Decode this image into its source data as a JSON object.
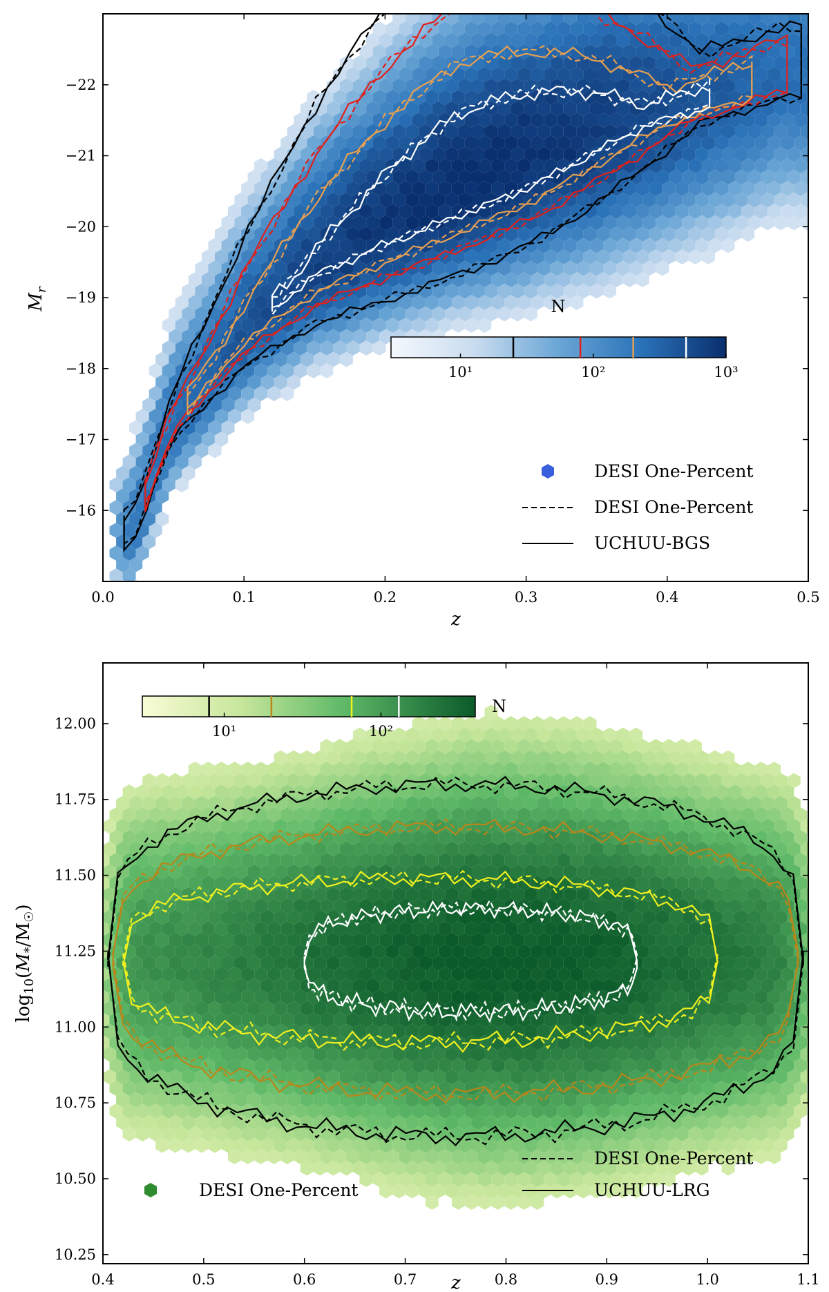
{
  "chart_data": [
    {
      "type": "hexbin-density-with-contours",
      "name": "BGS",
      "xlabel": "z",
      "ylabel": "M_r",
      "xlim": [
        0.0,
        0.5
      ],
      "ylim": [
        -15,
        -23
      ],
      "xticks": [
        0.0,
        0.1,
        0.2,
        0.3,
        0.4,
        0.5
      ],
      "xtick_labels": [
        "0.0",
        "0.1",
        "0.2",
        "0.3",
        "0.4",
        "0.5"
      ],
      "yticks": [
        -16,
        -17,
        -18,
        -19,
        -20,
        -21,
        -22
      ],
      "ytick_labels": [
        "−16",
        "−17",
        "−18",
        "−19",
        "−20",
        "−21",
        "−22"
      ],
      "colormap": "Blues",
      "colorbar": {
        "title": "N",
        "scale": "log",
        "range": [
          3,
          1000
        ],
        "tick_values": [
          10,
          100,
          1000
        ],
        "tick_labels": [
          "10¹",
          "10²",
          "10³"
        ],
        "contour_levels": [
          {
            "value": 25,
            "color": "#000000"
          },
          {
            "value": 80,
            "color": "#e0201a"
          },
          {
            "value": 200,
            "color": "#e8a050"
          },
          {
            "value": 500,
            "color": "#ffffff"
          }
        ]
      },
      "ridge": {
        "z": [
          0.02,
          0.05,
          0.1,
          0.15,
          0.2,
          0.25,
          0.3,
          0.35,
          0.4,
          0.45,
          0.48
        ],
        "M_r": [
          -15.6,
          -17.2,
          -18.5,
          -19.4,
          -20.0,
          -20.5,
          -20.9,
          -21.3,
          -21.6,
          -21.9,
          -22.1
        ]
      },
      "contour_levels_order": [
        "black (outermost)",
        "red",
        "orange",
        "white (innermost)"
      ],
      "legend": [
        {
          "label": "DESI One-Percent",
          "marker": "hexagon",
          "color": "#3a5fdc"
        },
        {
          "label": "DESI One-Percent",
          "marker": "dashed-line",
          "color": "#000000"
        },
        {
          "label": "UCHUU-BGS",
          "marker": "solid-line",
          "color": "#000000"
        }
      ]
    },
    {
      "type": "hexbin-density-with-contours",
      "name": "LRG",
      "xlabel": "z",
      "ylabel": "log10(M*/M☉)",
      "xlim": [
        0.4,
        1.1
      ],
      "ylim": [
        10.22,
        12.2
      ],
      "xticks": [
        0.4,
        0.5,
        0.6,
        0.7,
        0.8,
        0.9,
        1.0,
        1.1
      ],
      "xtick_labels": [
        "0.4",
        "0.5",
        "0.6",
        "0.7",
        "0.8",
        "0.9",
        "1.0",
        "1.1"
      ],
      "yticks": [
        10.25,
        10.5,
        10.75,
        11.0,
        11.25,
        11.5,
        11.75,
        12.0
      ],
      "ytick_labels": [
        "10.25",
        "10.50",
        "10.75",
        "11.00",
        "11.25",
        "11.50",
        "11.75",
        "12.00"
      ],
      "colormap": "Greens",
      "colorbar": {
        "title": "N",
        "scale": "log",
        "range": [
          3,
          400
        ],
        "tick_values": [
          10,
          100
        ],
        "tick_labels": [
          "10¹",
          "10²"
        ],
        "contour_levels": [
          {
            "value": 8,
            "color": "#000000"
          },
          {
            "value": 20,
            "color": "#b8861a"
          },
          {
            "value": 65,
            "color": "#f0f020"
          },
          {
            "value": 130,
            "color": "#ffffff"
          }
        ]
      },
      "center_M": 11.22,
      "contour_levels_order": [
        "black (outermost)",
        "brown",
        "yellow",
        "white (innermost)"
      ],
      "legend": [
        {
          "label": "DESI One-Percent",
          "marker": "dashed-line",
          "color": "#000000"
        },
        {
          "label": "DESI One-Percent",
          "marker": "hexagon",
          "color": "#2e8b2e"
        },
        {
          "label": "UCHUU-LRG",
          "marker": "solid-line",
          "color": "#000000"
        }
      ]
    }
  ]
}
